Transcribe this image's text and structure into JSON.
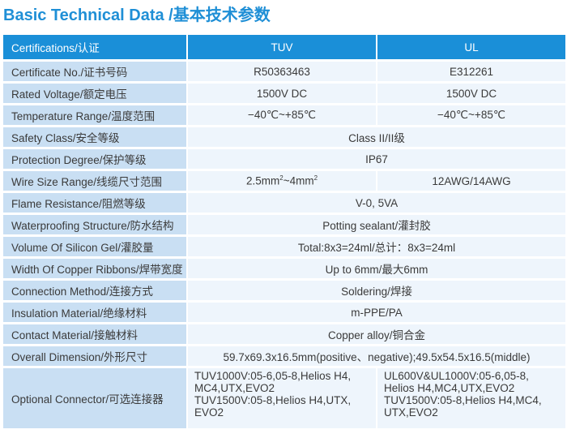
{
  "title": "Basic Technical Data /基本技术参数",
  "header": {
    "label": "Certifications/认证",
    "col1": "TUV",
    "col2": "UL"
  },
  "rows": {
    "certificate": {
      "label": "Certificate No./证书号码",
      "tuv": "R50363463",
      "ul": "E312261"
    },
    "voltage": {
      "label": "Rated Voltage/额定电压",
      "tuv": "1500V DC",
      "ul": "1500V DC"
    },
    "temperature": {
      "label": "Temperature Range/温度范围",
      "tuv": "−40℃~+85℃",
      "ul": "−40℃~+85℃"
    },
    "safety": {
      "label": "Safety Class/安全等级",
      "value": "Class II/II级"
    },
    "protection": {
      "label": "Protection Degree/保护等级",
      "value": "IP67"
    },
    "wire": {
      "label": "Wire Size Range/线缆尺寸范围",
      "tuv_a": "2.5mm",
      "tuv_sup": "2",
      "tuv_b": "~4mm",
      "ul": "12AWG/14AWG"
    },
    "flame": {
      "label": "Flame Resistance/阻燃等级",
      "value": "V-0, 5VA"
    },
    "waterproof": {
      "label": "Waterproofing Structure/防水结构",
      "value": "Potting sealant/灌封胶"
    },
    "silicon": {
      "label": "Volume Of Silicon Gel/灌胶量",
      "value": "Total:8x3=24ml/总计：8x3=24ml"
    },
    "copper_width": {
      "label": "Width Of Copper Ribbons/焊带宽度",
      "value": "Up to 6mm/最大6mm"
    },
    "connection": {
      "label": "Connection Method/连接方式",
      "value": "Soldering/焊接"
    },
    "insulation": {
      "label": "Insulation Material/绝缘材料",
      "value": "m-PPE/PA"
    },
    "contact": {
      "label": "Contact Material/接触材料",
      "value": "Copper alloy/铜合金"
    },
    "dimension": {
      "label": "Overall Dimension/外形尺寸",
      "value": "59.7x69.3x16.5mm(positive、negative);49.5x54.5x16.5(middle)"
    },
    "connector": {
      "label": "Optional Connector/可选连接器",
      "tuv_lines": [
        "TUV1000V:05-6,05-8,Helios H4,",
        "MC4,UTX,EVO2",
        "TUV1500V:05-8,Helios H4,UTX,",
        "EVO2"
      ],
      "ul_lines": [
        "UL600V&UL1000V:05-6,05-8,",
        "Helios H4,MC4,UTX,EVO2",
        "TUV1500V:05-8,Helios H4,MC4,",
        "UTX,EVO2"
      ]
    }
  }
}
